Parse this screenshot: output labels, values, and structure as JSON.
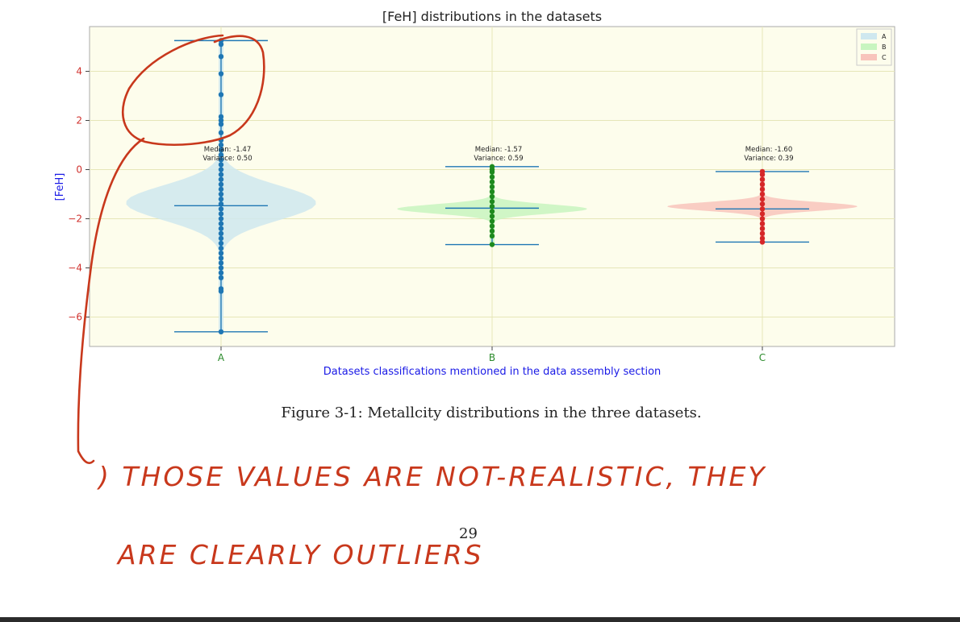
{
  "chart_data": {
    "type": "violin",
    "title": "[FeH] distributions in the datasets",
    "xlabel": "Datasets classifications mentioned in the data assembly section",
    "ylabel": "[FeH]",
    "categories": [
      "A",
      "B",
      "C"
    ],
    "ylim": [
      -7.2,
      5.8
    ],
    "yticks": [
      -6,
      -4,
      -2,
      0,
      2,
      4
    ],
    "ytick_labels": [
      "−6",
      "−4",
      "−2",
      "0",
      "2",
      "4"
    ],
    "grid": true,
    "legend_position": "top-right",
    "colors": {
      "A_fill": "#cfe8ef",
      "B_fill": "#c8f5c0",
      "C_fill": "#f8c4bc",
      "A_points": "#1f77b4",
      "B_points": "#1e8a1e",
      "C_points": "#d62728",
      "stats_lines": "#1f77b4",
      "plot_bg": "#fdfdec",
      "annotation_ink": "#c8381c"
    },
    "series": [
      {
        "name": "A",
        "median": -1.47,
        "min": -6.6,
        "max": 5.25,
        "peak": -1.35,
        "median_label": "Median: -1.47",
        "variance_label": "Variance: 0.50",
        "points": [
          5.25,
          5.1,
          4.6,
          3.9,
          3.05,
          2.15,
          2.0,
          1.85,
          1.5,
          1.2,
          1.0,
          0.8,
          0.6,
          0.4,
          0.2,
          0.0,
          -0.2,
          -0.4,
          -0.6,
          -0.8,
          -1.0,
          -1.2,
          -1.4,
          -1.6,
          -1.8,
          -2.0,
          -2.2,
          -2.4,
          -2.6,
          -2.8,
          -3.0,
          -3.2,
          -3.4,
          -3.6,
          -3.8,
          -4.0,
          -4.2,
          -4.4,
          -4.85,
          -4.95,
          -6.6
        ]
      },
      {
        "name": "B",
        "median": -1.57,
        "min": -3.05,
        "max": 0.12,
        "peak": -1.6,
        "median_label": "Median: -1.57",
        "variance_label": "Variance: 0.59",
        "points": [
          0.12,
          0.0,
          -0.1,
          -0.3,
          -0.5,
          -0.7,
          -0.9,
          -1.1,
          -1.3,
          -1.5,
          -1.7,
          -1.9,
          -2.1,
          -2.3,
          -2.5,
          -2.7,
          -3.05
        ]
      },
      {
        "name": "C",
        "median": -1.6,
        "min": -2.95,
        "max": -0.08,
        "peak": -1.5,
        "median_label": "Median: -1.60",
        "variance_label": "Variance: 0.39",
        "points": [
          -0.08,
          -0.2,
          -0.4,
          -0.6,
          -0.8,
          -1.0,
          -1.2,
          -1.4,
          -1.6,
          -1.8,
          -2.0,
          -2.2,
          -2.4,
          -2.6,
          -2.8,
          -2.95
        ]
      }
    ]
  },
  "figure_caption": "Figure 3-1: Metallcity distributions in the three datasets.",
  "page_number": "29",
  "handwritten_note": {
    "line1": ") THOSE  VALUES  ARE  NOT-REALISTIC, THEY",
    "line2": "ARE  CLEARLY  OUTLIERS"
  }
}
